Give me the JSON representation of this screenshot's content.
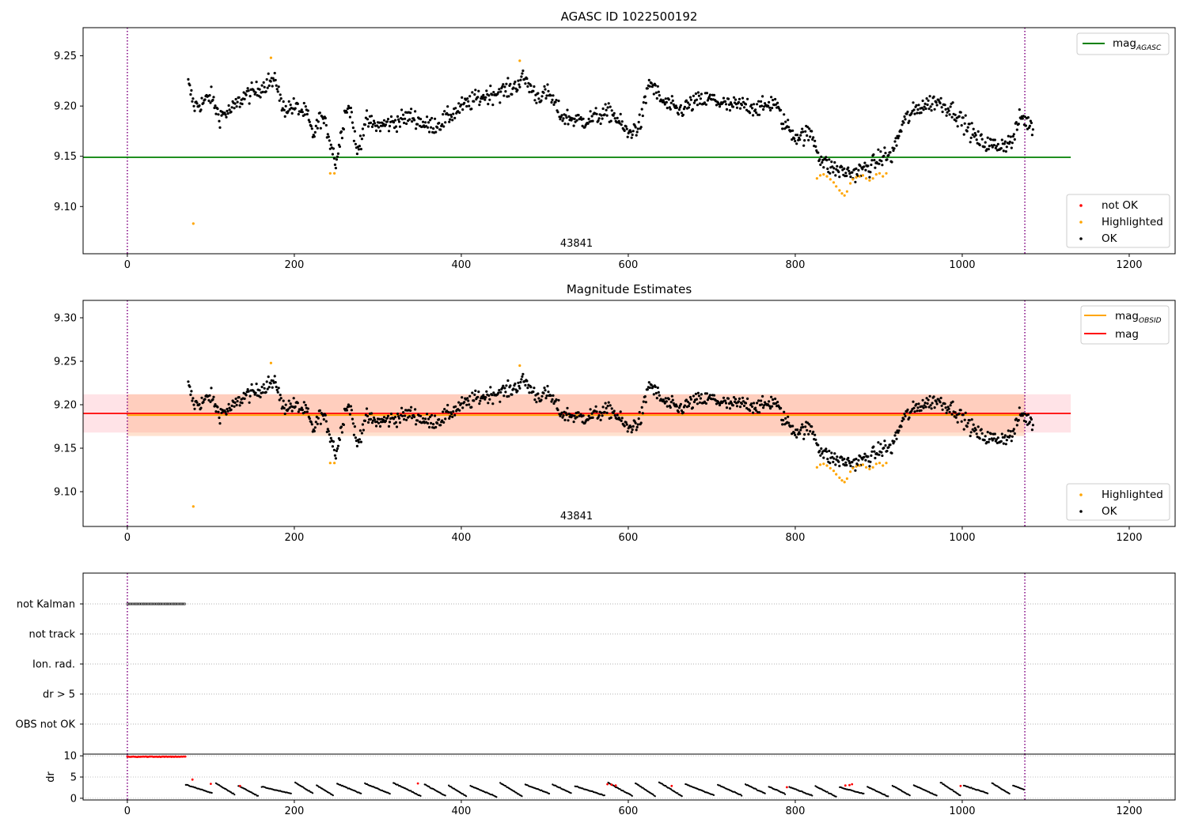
{
  "chart_data": [
    {
      "type": "scatter",
      "title": "AGASC ID 1022500192",
      "xlim": [
        -53,
        1255
      ],
      "ylim": [
        9.053,
        9.278
      ],
      "xticks": [
        "0",
        "200",
        "400",
        "600",
        "800",
        "1000",
        "1200"
      ],
      "yticks": [
        "9.10",
        "9.15",
        "9.20",
        "9.25"
      ],
      "annotation": "43841",
      "annotation_x": 538,
      "vlines_x": [
        0,
        1075
      ],
      "hline": {
        "name": "mag",
        "sub": "AGASC",
        "y": 9.149,
        "x": [
          -53,
          1130
        ],
        "color": "#008000"
      },
      "legend_top": [
        {
          "label": "mag",
          "sub": "AGASC",
          "color": "#008000"
        }
      ],
      "legend_bottom": [
        {
          "label": "not OK",
          "color": "#ff0000"
        },
        {
          "label": "Highlighted",
          "color": "#ffa500"
        },
        {
          "label": "OK",
          "color": "#000000"
        }
      ],
      "series": {
        "ok_knots": [
          [
            73,
            9.222
          ],
          [
            80,
            9.2
          ],
          [
            90,
            9.203
          ],
          [
            100,
            9.21
          ],
          [
            110,
            9.19
          ],
          [
            125,
            9.196
          ],
          [
            140,
            9.21
          ],
          [
            155,
            9.215
          ],
          [
            170,
            9.225
          ],
          [
            180,
            9.222
          ],
          [
            185,
            9.198
          ],
          [
            200,
            9.199
          ],
          [
            215,
            9.192
          ],
          [
            222,
            9.17
          ],
          [
            232,
            9.19
          ],
          [
            240,
            9.175
          ],
          [
            250,
            9.143
          ],
          [
            262,
            9.2
          ],
          [
            268,
            9.195
          ],
          [
            275,
            9.152
          ],
          [
            285,
            9.185
          ],
          [
            300,
            9.18
          ],
          [
            320,
            9.184
          ],
          [
            340,
            9.19
          ],
          [
            360,
            9.18
          ],
          [
            375,
            9.183
          ],
          [
            400,
            9.199
          ],
          [
            420,
            9.208
          ],
          [
            440,
            9.213
          ],
          [
            460,
            9.217
          ],
          [
            475,
            9.228
          ],
          [
            490,
            9.21
          ],
          [
            505,
            9.212
          ],
          [
            520,
            9.19
          ],
          [
            545,
            9.185
          ],
          [
            565,
            9.19
          ],
          [
            580,
            9.194
          ],
          [
            600,
            9.172
          ],
          [
            615,
            9.183
          ],
          [
            625,
            9.225
          ],
          [
            640,
            9.205
          ],
          [
            660,
            9.195
          ],
          [
            680,
            9.204
          ],
          [
            700,
            9.207
          ],
          [
            720,
            9.2
          ],
          [
            740,
            9.201
          ],
          [
            760,
            9.198
          ],
          [
            775,
            9.205
          ],
          [
            785,
            9.185
          ],
          [
            800,
            9.17
          ],
          [
            820,
            9.172
          ],
          [
            830,
            9.148
          ],
          [
            840,
            9.14
          ],
          [
            855,
            9.135
          ],
          [
            870,
            9.133
          ],
          [
            890,
            9.14
          ],
          [
            905,
            9.15
          ],
          [
            915,
            9.15
          ],
          [
            930,
            9.185
          ],
          [
            950,
            9.2
          ],
          [
            970,
            9.205
          ],
          [
            990,
            9.195
          ],
          [
            1005,
            9.18
          ],
          [
            1020,
            9.165
          ],
          [
            1040,
            9.16
          ],
          [
            1060,
            9.165
          ],
          [
            1070,
            9.19
          ],
          [
            1085,
            9.178
          ]
        ],
        "highlighted": [
          [
            79,
            9.083
          ],
          [
            172,
            9.248
          ],
          [
            243,
            9.133
          ],
          [
            248,
            9.133
          ],
          [
            470,
            9.245
          ],
          [
            826,
            9.128
          ],
          [
            830,
            9.131
          ],
          [
            834,
            9.132
          ],
          [
            838,
            9.13
          ],
          [
            842,
            9.127
          ],
          [
            846,
            9.124
          ],
          [
            849,
            9.12
          ],
          [
            853,
            9.116
          ],
          [
            856,
            9.113
          ],
          [
            859,
            9.111
          ],
          [
            862,
            9.115
          ],
          [
            866,
            9.123
          ],
          [
            869,
            9.127
          ],
          [
            873,
            9.129
          ],
          [
            877,
            9.13
          ],
          [
            881,
            9.131
          ],
          [
            885,
            9.128
          ],
          [
            889,
            9.126
          ],
          [
            893,
            9.128
          ],
          [
            897,
            9.132
          ],
          [
            901,
            9.133
          ],
          [
            905,
            9.13
          ],
          [
            909,
            9.133
          ]
        ]
      }
    },
    {
      "type": "scatter",
      "title": "Magnitude Estimates",
      "xlim": [
        -53,
        1255
      ],
      "ylim": [
        9.06,
        9.32
      ],
      "xticks": [
        "0",
        "200",
        "400",
        "600",
        "800",
        "1000",
        "1200"
      ],
      "yticks": [
        "9.10",
        "9.15",
        "9.20",
        "9.25",
        "9.30"
      ],
      "annotation": "43841",
      "annotation_x": 538,
      "vlines_x": [
        0,
        1075
      ],
      "bands": [
        {
          "y0": 9.168,
          "y1": 9.212,
          "x": [
            -53,
            1130
          ],
          "color": "#ff9aa8",
          "opacity": 0.28
        },
        {
          "y0": 9.164,
          "y1": 9.212,
          "x": [
            0,
            1075
          ],
          "color": "#ffa060",
          "opacity": 0.3
        }
      ],
      "hlines": [
        {
          "name": "mag",
          "sub": "OBSID",
          "y": 9.188,
          "x": [
            0,
            1075
          ],
          "color": "#ffa500"
        },
        {
          "name": "mag",
          "y": 9.19,
          "x": [
            -53,
            1130
          ],
          "color": "#ff0000"
        }
      ],
      "legend_top": [
        {
          "label": "mag",
          "sub": "OBSID",
          "color": "#ffa500"
        },
        {
          "label": "mag",
          "color": "#ff0000"
        }
      ],
      "legend_bottom": [
        {
          "label": "Highlighted",
          "color": "#ffa500"
        },
        {
          "label": "OK",
          "color": "#000000"
        }
      ]
    },
    {
      "type": "scatter",
      "title": "",
      "xlim": [
        -53,
        1255
      ],
      "categories": [
        "not Kalman",
        "not track",
        "Ion. rad.",
        "dr > 5",
        "OBS not OK"
      ],
      "kalman_range": [
        0,
        70
      ],
      "xticks": [
        "0",
        "200",
        "400",
        "600",
        "800",
        "1000",
        "1200"
      ],
      "vlines_x": [
        0,
        1075
      ]
    },
    {
      "type": "scatter",
      "title": "",
      "xlim": [
        -53,
        1255
      ],
      "ylim": [
        -0.4,
        10.4
      ],
      "ylabel": "dr",
      "yticks": [
        "0",
        "5",
        "10"
      ],
      "xticks": [
        "0",
        "200",
        "400",
        "600",
        "800",
        "1000",
        "1200"
      ],
      "vlines_x": [
        0,
        1075
      ],
      "red_flat": {
        "x": [
          0,
          70
        ],
        "y": 9.8
      },
      "red_points": [
        [
          78,
          4.4
        ],
        [
          100,
          3.4
        ],
        [
          135,
          2.9
        ],
        [
          348,
          3.5
        ],
        [
          575,
          3.3
        ],
        [
          580,
          3.2
        ],
        [
          585,
          3.0
        ],
        [
          652,
          2.9
        ],
        [
          790,
          2.6
        ],
        [
          860,
          3.0
        ],
        [
          865,
          3.1
        ],
        [
          868,
          3.3
        ],
        [
          998,
          2.9
        ]
      ]
    }
  ]
}
